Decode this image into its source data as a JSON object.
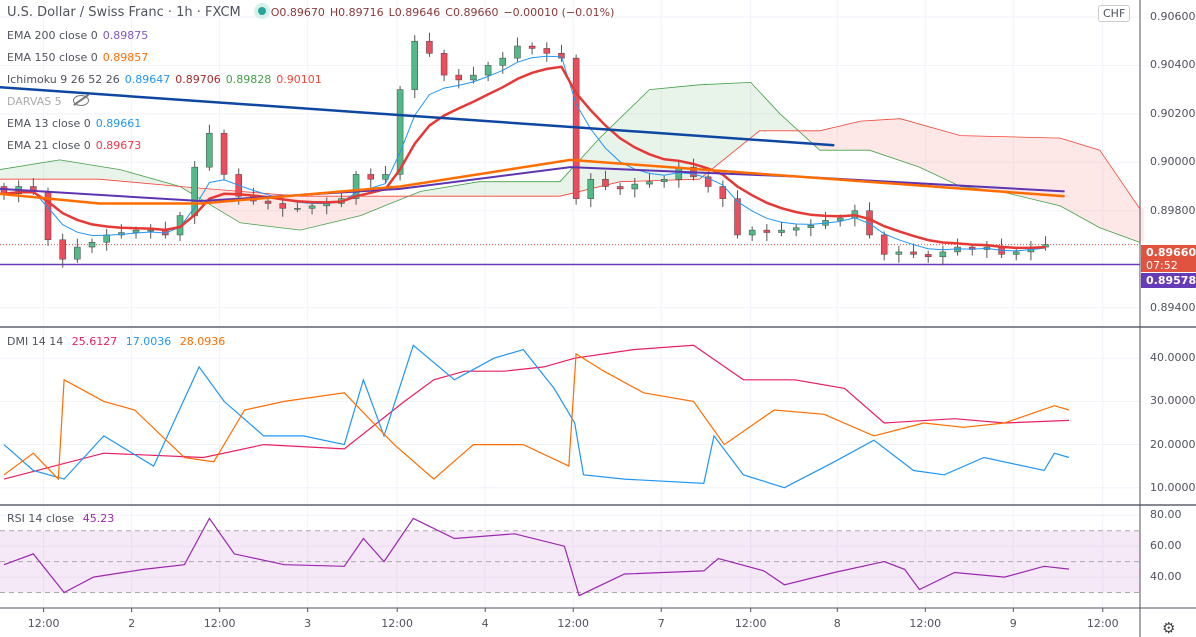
{
  "header": {
    "title": "U.S. Dollar / Swiss Franc · 1h · FXCM",
    "open": "O0.89670",
    "high": "H0.89716",
    "low": "L0.89646",
    "close": "C0.89660",
    "change": "−0.00010 (−0.01%)"
  },
  "indicators": [
    {
      "label": "EMA 200 close 0",
      "values": [
        "0.89875"
      ],
      "colors": [
        "#7e57c2"
      ]
    },
    {
      "label": "EMA 150 close 0",
      "values": [
        "0.89857"
      ],
      "colors": [
        "#ff6d00"
      ]
    },
    {
      "label": "Ichimoku 9 26 52 26",
      "values": [
        "0.89647",
        "0.89706",
        "0.89828",
        "0.90101"
      ],
      "colors": [
        "#2196f3",
        "#a52a2a",
        "#43a047",
        "#f44336"
      ]
    },
    {
      "label": "DARVAS 5",
      "values": [],
      "colors": []
    },
    {
      "label": "EMA 13 close 0",
      "values": [
        "0.89661"
      ],
      "colors": [
        "#2196f3"
      ]
    },
    {
      "label": "EMA 21 close 0",
      "values": [
        "0.89673"
      ],
      "colors": [
        "#f23645"
      ]
    }
  ],
  "dmi_legend": {
    "label": "DMI 14 14",
    "values": [
      "25.6127",
      "17.0036",
      "28.0936"
    ],
    "colors": [
      "#e91e63",
      "#2196f3",
      "#ff6d00"
    ]
  },
  "rsi_legend": {
    "label": "RSI 14 close",
    "value": "45.23",
    "color": "#9c27b0"
  },
  "currency_button": "CHF",
  "price_labels": {
    "last": "0.89660",
    "countdown": "07:52",
    "line": "0.89578"
  },
  "colors": {
    "up": "#53b987",
    "down": "#eb4d5c",
    "last_bg": "#e0533f",
    "line_bg": "#673ab7"
  },
  "chart_data": [
    {
      "type": "candlestick",
      "title": "U.S. Dollar / Swiss Franc · 1h · FXCM",
      "x_unit": "2h bar index",
      "y_ticks": [
        "0.90600",
        "0.90400",
        "0.90200",
        "0.90000",
        "0.89800",
        "0.89400"
      ],
      "y_tick_values": [
        0.906,
        0.904,
        0.902,
        0.9,
        0.898,
        0.894
      ],
      "ylim": [
        0.8932,
        0.9067
      ],
      "x_ticks": [
        "12:00",
        "2",
        "12:00",
        "3",
        "12:00",
        "4",
        "12:00",
        "7",
        "12:00",
        "8",
        "12:00",
        "9",
        "12:00"
      ],
      "x_tick_bars": [
        2.7,
        8.7,
        14.7,
        20.7,
        26.8,
        32.8,
        38.8,
        44.8,
        50.9,
        56.8,
        62.8,
        68.8,
        74.9
      ],
      "closes": [
        0.8987,
        0.899,
        0.8988,
        0.8968,
        0.896,
        0.8965,
        0.8967,
        0.897,
        0.8971,
        0.8972,
        0.8972,
        0.897,
        0.8978,
        0.8998,
        0.9012,
        0.8995,
        0.8986,
        0.8984,
        0.8983,
        0.8981,
        0.8981,
        0.8982,
        0.8983,
        0.8985,
        0.8995,
        0.8993,
        0.8995,
        0.903,
        0.905,
        0.9045,
        0.9036,
        0.9034,
        0.9036,
        0.904,
        0.9043,
        0.9048,
        0.9047,
        0.9045,
        0.9043,
        0.8985,
        0.8993,
        0.899,
        0.8989,
        0.8991,
        0.8992,
        0.8993,
        0.8998,
        0.8994,
        0.899,
        0.8985,
        0.897,
        0.8972,
        0.8971,
        0.8972,
        0.8973,
        0.8974,
        0.8976,
        0.8977,
        0.898,
        0.897,
        0.8962,
        0.8963,
        0.8962,
        0.8961,
        0.8963,
        0.8965,
        0.8964,
        0.8965,
        0.8962,
        0.8963,
        0.8965,
        0.8966
      ],
      "ema200": [
        [
          -0.3,
          0.8989
        ],
        [
          13.4,
          0.8984
        ],
        [
          27,
          0.8989
        ],
        [
          38.6,
          0.8998
        ],
        [
          54.3,
          0.8994
        ],
        [
          72.3,
          0.8988
        ]
      ],
      "ema150": [
        [
          -0.3,
          0.8987
        ],
        [
          6.5,
          0.8983
        ],
        [
          13.4,
          0.8983
        ],
        [
          27,
          0.899
        ],
        [
          38.6,
          0.9001
        ],
        [
          54.3,
          0.8994
        ],
        [
          72.3,
          0.8986
        ]
      ],
      "ichimoku_span_a": [
        [
          -0.3,
          0.8997
        ],
        [
          3.8,
          0.9001
        ],
        [
          7.9,
          0.8997
        ],
        [
          12,
          0.899
        ],
        [
          16.1,
          0.8975
        ],
        [
          20.2,
          0.8972
        ],
        [
          24.3,
          0.8978
        ],
        [
          28.4,
          0.8988
        ],
        [
          32.4,
          0.8992
        ],
        [
          37.9,
          0.8992
        ],
        [
          40.6,
          0.901
        ],
        [
          44,
          0.903
        ],
        [
          47.4,
          0.9032
        ],
        [
          50.9,
          0.9033
        ],
        [
          52.9,
          0.902
        ],
        [
          55.6,
          0.9005
        ],
        [
          59,
          0.9005
        ],
        [
          62.4,
          0.8998
        ],
        [
          65.2,
          0.899
        ],
        [
          67.9,
          0.8988
        ],
        [
          72,
          0.8982
        ],
        [
          74.7,
          0.8973
        ],
        [
          77.4,
          0.8967
        ]
      ],
      "ichimoku_span_b": [
        [
          -0.3,
          0.8993
        ],
        [
          6.5,
          0.8993
        ],
        [
          12,
          0.899
        ],
        [
          16.1,
          0.8988
        ],
        [
          20.2,
          0.8986
        ],
        [
          24.3,
          0.8986
        ],
        [
          28.4,
          0.8986
        ],
        [
          37.9,
          0.8986
        ],
        [
          42,
          0.8992
        ],
        [
          47.4,
          0.8993
        ],
        [
          51.5,
          0.9013
        ],
        [
          55.6,
          0.9013
        ],
        [
          58.4,
          0.9017
        ],
        [
          61.1,
          0.9018
        ],
        [
          65.2,
          0.9011
        ],
        [
          72,
          0.901
        ],
        [
          74.7,
          0.9005
        ],
        [
          77.4,
          0.8981
        ]
      ],
      "trendline": [
        [
          -0.3,
          0.9031
        ],
        [
          56.6,
          0.9007
        ]
      ],
      "horizontal_line": 0.89578
    },
    {
      "type": "line",
      "title": "DMI 14 14",
      "ylim": [
        6,
        47
      ],
      "y_ticks": [
        "40.0000",
        "30.0000",
        "20.0000",
        "10.0000"
      ],
      "y_tick_values": [
        40,
        30,
        20,
        10
      ],
      "series": [
        {
          "name": "ADX",
          "color": "#e91e63",
          "points": [
            [
              0,
              12
            ],
            [
              6.8,
              18
            ],
            [
              13.6,
              17
            ],
            [
              17.7,
              20
            ],
            [
              23.2,
              19
            ],
            [
              27.3,
              30
            ],
            [
              29.3,
              35
            ],
            [
              31.4,
              37
            ],
            [
              34.1,
              37
            ],
            [
              36.8,
              38
            ],
            [
              38.9,
              40
            ],
            [
              42.9,
              42
            ],
            [
              47,
              43
            ],
            [
              50.4,
              35
            ],
            [
              53.9,
              35
            ],
            [
              57.3,
              33
            ],
            [
              60,
              25
            ],
            [
              64.8,
              26
            ],
            [
              68.2,
              25
            ],
            [
              72.6,
              25.6
            ]
          ]
        },
        {
          "name": "+DI",
          "color": "#2196f3",
          "points": [
            [
              0,
              20
            ],
            [
              2,
              14
            ],
            [
              4.1,
              12
            ],
            [
              6.8,
              22
            ],
            [
              10.2,
              15
            ],
            [
              13.3,
              38
            ],
            [
              15,
              30
            ],
            [
              17.7,
              22
            ],
            [
              20.4,
              22
            ],
            [
              23.2,
              20
            ],
            [
              24.5,
              35
            ],
            [
              25.9,
              22
            ],
            [
              27.9,
              43
            ],
            [
              30.7,
              35
            ],
            [
              33.4,
              40
            ],
            [
              35.4,
              42
            ],
            [
              37.5,
              33
            ],
            [
              38.9,
              25
            ],
            [
              39.5,
              13
            ],
            [
              42.3,
              12
            ],
            [
              47.7,
              11
            ],
            [
              48.4,
              22
            ],
            [
              50.4,
              13
            ],
            [
              53.2,
              10
            ],
            [
              56.6,
              16
            ],
            [
              59.3,
              21
            ],
            [
              62,
              14
            ],
            [
              64.1,
              13
            ],
            [
              66.8,
              17
            ],
            [
              70.9,
              14
            ],
            [
              71.6,
              18
            ],
            [
              72.6,
              17
            ]
          ]
        },
        {
          "name": "-DI",
          "color": "#ff6d00",
          "points": [
            [
              0,
              13
            ],
            [
              2,
              18
            ],
            [
              3.7,
              12
            ],
            [
              4.1,
              35
            ],
            [
              6.8,
              30
            ],
            [
              8.9,
              28
            ],
            [
              12.3,
              17
            ],
            [
              14.3,
              16
            ],
            [
              16.4,
              28
            ],
            [
              19.1,
              30
            ],
            [
              23.2,
              32
            ],
            [
              26.6,
              20
            ],
            [
              29.3,
              12
            ],
            [
              32,
              20
            ],
            [
              35.4,
              20
            ],
            [
              38.5,
              15
            ],
            [
              39,
              41
            ],
            [
              40.9,
              37
            ],
            [
              43.6,
              32
            ],
            [
              47,
              30
            ],
            [
              49.1,
              20
            ],
            [
              52.5,
              28
            ],
            [
              55.9,
              27
            ],
            [
              59.3,
              22
            ],
            [
              62.7,
              25
            ],
            [
              65.4,
              24
            ],
            [
              68.2,
              25
            ],
            [
              71.6,
              29
            ],
            [
              72.6,
              28
            ]
          ]
        }
      ]
    },
    {
      "type": "line",
      "title": "RSI 14 close",
      "ylim": [
        20,
        86
      ],
      "y_ticks": [
        "80.00",
        "60.00",
        "40.00"
      ],
      "y_tick_values": [
        80,
        60,
        40
      ],
      "band": [
        30,
        70
      ],
      "series": [
        {
          "name": "RSI",
          "color": "#9c27b0",
          "points": [
            [
              0,
              48
            ],
            [
              2,
              55
            ],
            [
              4.1,
              30
            ],
            [
              6.1,
              40
            ],
            [
              9.5,
              45
            ],
            [
              12.3,
              48
            ],
            [
              14,
              78
            ],
            [
              15.7,
              55
            ],
            [
              19.1,
              48
            ],
            [
              23.2,
              47
            ],
            [
              24.5,
              65
            ],
            [
              25.9,
              50
            ],
            [
              27.9,
              78
            ],
            [
              30.7,
              65
            ],
            [
              34.8,
              68
            ],
            [
              38.2,
              60
            ],
            [
              39.2,
              28
            ],
            [
              42.3,
              42
            ],
            [
              47.7,
              44
            ],
            [
              48.7,
              52
            ],
            [
              51.8,
              44
            ],
            [
              53.2,
              35
            ],
            [
              56.6,
              43
            ],
            [
              60,
              50
            ],
            [
              61.4,
              45
            ],
            [
              62.4,
              32
            ],
            [
              64.8,
              43
            ],
            [
              68.2,
              40
            ],
            [
              70.9,
              47
            ],
            [
              72.6,
              45.2
            ]
          ]
        }
      ]
    }
  ]
}
